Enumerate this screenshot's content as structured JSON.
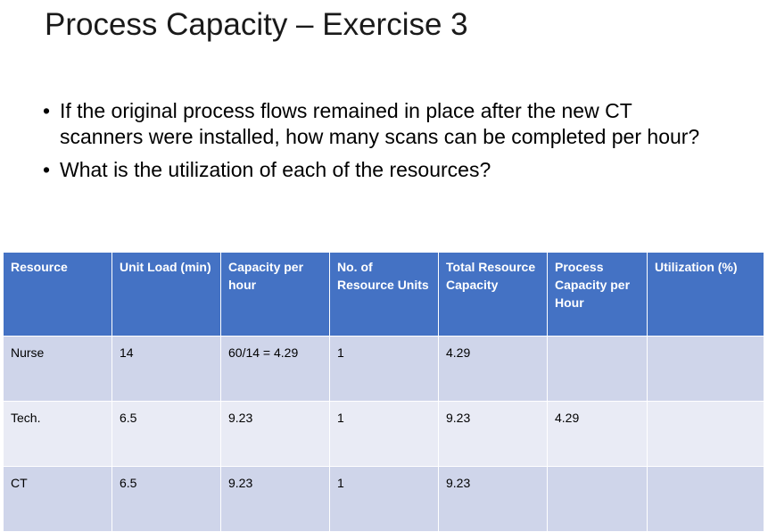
{
  "slide": {
    "title": "Process Capacity – Exercise 3",
    "bullets": [
      "If the original process flows remained in place after the new CT scanners were installed, how many scans can be completed per hour?",
      "What is the utilization of each of the resources?"
    ]
  },
  "table": {
    "headers": [
      "Resource",
      "Unit Load (min)",
      "Capacity per hour",
      "No. of Resource Units",
      "Total Resource Capacity",
      "Process Capacity per Hour",
      "Utilization (%)"
    ],
    "rows": [
      [
        "Nurse",
        "14",
        "60/14 = 4.29",
        "1",
        "4.29",
        "",
        ""
      ],
      [
        "Tech.",
        "6.5",
        "9.23",
        "1",
        "9.23",
        "4.29",
        ""
      ],
      [
        "CT",
        "6.5",
        "9.23",
        "1",
        "9.23",
        "",
        ""
      ]
    ]
  },
  "colors": {
    "header_bg": "#4472c4",
    "row_odd_bg": "#cfd5ea",
    "row_even_bg": "#e9ebf5"
  }
}
